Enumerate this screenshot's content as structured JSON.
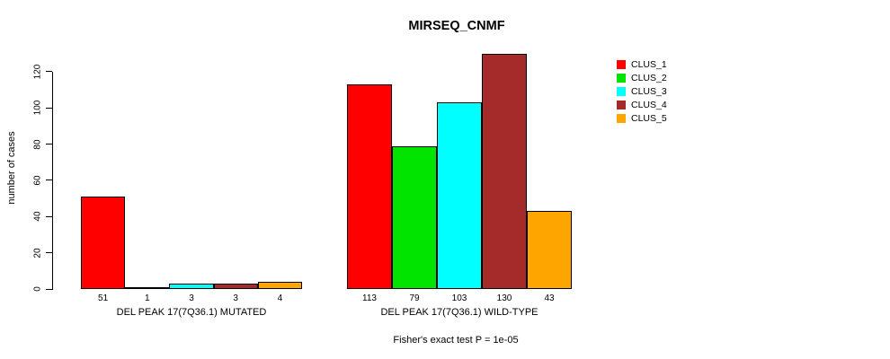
{
  "title": "MIRSEQ_CNMF",
  "footer": "Fisher's exact test P = 1e-05",
  "chart_data": {
    "type": "bar",
    "title": "MIRSEQ_CNMF",
    "xlabel": "",
    "ylabel": "number of cases",
    "ylim": [
      0,
      130
    ],
    "yticks": [
      0,
      20,
      40,
      60,
      80,
      100,
      120
    ],
    "grid": false,
    "legend_position": "right-outside",
    "bar_borders": true,
    "categories": [
      "DEL PEAK 17(7Q36.1) MUTATED",
      "DEL PEAK 17(7Q36.1) WILD-TYPE"
    ],
    "series": [
      {
        "name": "CLUS_1",
        "color": "#FF0000",
        "values": [
          51,
          113
        ]
      },
      {
        "name": "CLUS_2",
        "color": "#00E400",
        "values": [
          1,
          79
        ]
      },
      {
        "name": "CLUS_3",
        "color": "#00FFFF",
        "values": [
          3,
          103
        ]
      },
      {
        "name": "CLUS_4",
        "color": "#A52A2A",
        "values": [
          3,
          130
        ]
      },
      {
        "name": "CLUS_5",
        "color": "#FFA500",
        "values": [
          4,
          43
        ]
      }
    ],
    "bar_value_labels_shown": true,
    "annotation": "Fisher's exact test P = 1e-05"
  }
}
